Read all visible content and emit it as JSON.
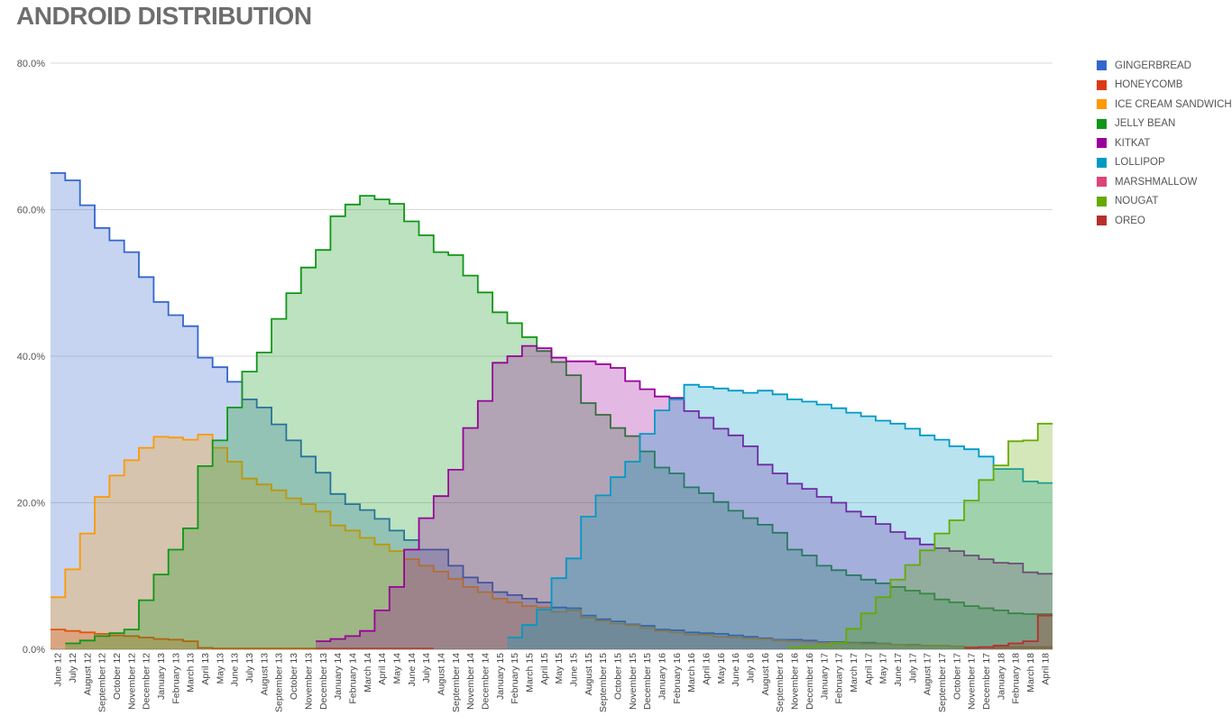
{
  "chart_data": {
    "type": "area",
    "title": "ANDROID DISTRIBUTION",
    "categories": [
      "June 12",
      "July 12",
      "August 12",
      "September 12",
      "October 12",
      "November 12",
      "December 12",
      "January 13",
      "February 13",
      "March 13",
      "April 13",
      "May 13",
      "June 13",
      "July 13",
      "August 13",
      "September 13",
      "October 13",
      "November 13",
      "December 13",
      "January 14",
      "February 14",
      "March 14",
      "April 14",
      "May 14",
      "June 14",
      "July 14",
      "August 14",
      "September 14",
      "November 14",
      "December 14",
      "January 15",
      "February 15",
      "March 15",
      "April 15",
      "May 15",
      "June 15",
      "August 15",
      "September 15",
      "October 15",
      "November 15",
      "December 15",
      "January 16",
      "February 16",
      "March 16",
      "April 16",
      "May 16",
      "June 16",
      "July 16",
      "August 16",
      "September 16",
      "November 16",
      "December 16",
      "January 17",
      "February 17",
      "March 17",
      "April 17",
      "May 17",
      "June 17",
      "July 17",
      "August 17",
      "September 17",
      "October 17",
      "November 17",
      "December 17",
      "January 18",
      "February 18",
      "March 18",
      "April 18"
    ],
    "y_ticks": [
      "0.0%",
      "20.0%",
      "40.0%",
      "60.0%",
      "80.0%"
    ],
    "ylim": [
      0,
      80
    ],
    "grid": true,
    "legend_position": "right",
    "series": [
      {
        "name": "GINGERBREAD",
        "color": "#3366cc",
        "fill": "#c6d3f0",
        "values": [
          65.0,
          64.0,
          60.6,
          57.5,
          55.8,
          54.2,
          50.8,
          47.4,
          45.6,
          44.1,
          39.8,
          38.5,
          36.5,
          34.1,
          33.0,
          30.7,
          28.5,
          26.3,
          24.1,
          21.2,
          19.8,
          19.0,
          17.8,
          16.2,
          14.9,
          13.6,
          13.6,
          11.4,
          9.8,
          9.1,
          7.8,
          7.4,
          6.9,
          6.4,
          5.7,
          5.6,
          4.6,
          4.1,
          3.8,
          3.4,
          3.2,
          2.7,
          2.6,
          2.3,
          2.2,
          2.1,
          1.9,
          1.7,
          1.5,
          1.3,
          1.3,
          1.2,
          1.0,
          1.0,
          0.9,
          0.9,
          0.8,
          0.6,
          0.6,
          0.5,
          0.5,
          0.4,
          0.3,
          0.3,
          0.3,
          0.3,
          0.3,
          0.3
        ]
      },
      {
        "name": "HONEYCOMB",
        "color": "#dc3912",
        "fill": "#f4c3b6",
        "values": [
          2.7,
          2.5,
          2.3,
          2.1,
          1.9,
          1.8,
          1.6,
          1.4,
          1.3,
          1.1,
          0.2,
          0.1,
          0.1,
          0.1,
          0.1,
          0.1,
          0.1,
          0.1,
          0.1,
          0.1,
          0.1,
          0.1,
          0.1,
          0.1,
          0.1,
          0.1,
          0.0,
          0.0,
          0.0,
          0.0,
          0.0,
          0.0,
          0.0,
          0.0,
          0.0,
          0.0,
          0.0,
          0.0,
          0.0,
          0.0,
          0.0,
          0.0,
          0.0,
          0.0,
          0.0,
          0.0,
          0.0,
          0.0,
          0.0,
          0.0,
          0.0,
          0.0,
          0.0,
          0.0,
          0.0,
          0.0,
          0.0,
          0.0,
          0.0,
          0.0,
          0.0,
          0.0,
          0.0,
          0.0,
          0.0,
          0.0,
          0.0,
          0.0
        ]
      },
      {
        "name": "ICE CREAM SANDWICH",
        "color": "#ff9900",
        "fill": "#fbd9b0",
        "values": [
          7.1,
          10.9,
          15.8,
          20.8,
          23.7,
          25.8,
          27.5,
          29.0,
          28.9,
          28.6,
          29.3,
          27.5,
          25.6,
          23.3,
          22.5,
          21.7,
          20.6,
          19.8,
          18.8,
          16.9,
          16.2,
          15.2,
          14.3,
          13.4,
          12.3,
          11.4,
          10.6,
          9.6,
          8.5,
          7.8,
          6.9,
          6.4,
          5.9,
          5.7,
          5.1,
          5.3,
          4.3,
          3.9,
          3.5,
          3.3,
          2.9,
          2.5,
          2.3,
          2.0,
          2.0,
          1.7,
          1.6,
          1.5,
          1.4,
          1.2,
          1.1,
          1.0,
          0.9,
          0.8,
          0.8,
          0.7,
          0.7,
          0.6,
          0.5,
          0.5,
          0.5,
          0.4,
          0.3,
          0.3,
          0.2,
          0.2,
          0.2,
          0.2
        ]
      },
      {
        "name": "JELLY BEAN",
        "color": "#109618",
        "fill": "#b5e2b9",
        "values": [
          0,
          0.8,
          1.2,
          1.8,
          2.2,
          2.7,
          6.7,
          10.2,
          13.6,
          16.5,
          25.0,
          28.5,
          33.0,
          37.9,
          40.5,
          45.1,
          48.6,
          52.1,
          54.5,
          59.1,
          60.7,
          61.9,
          61.4,
          60.8,
          58.4,
          56.5,
          54.2,
          53.8,
          51.0,
          48.7,
          46.0,
          44.5,
          42.6,
          40.7,
          39.2,
          37.4,
          33.6,
          32.0,
          30.2,
          29.1,
          27.0,
          24.8,
          24.0,
          22.1,
          21.3,
          20.1,
          18.9,
          17.9,
          17.0,
          15.9,
          13.6,
          12.8,
          11.4,
          10.8,
          10.1,
          9.5,
          9.0,
          8.5,
          8.0,
          7.6,
          6.8,
          6.4,
          5.9,
          5.6,
          5.3,
          4.9,
          4.8,
          4.8
        ]
      },
      {
        "name": "KITKAT",
        "color": "#990099",
        "fill": "#e3b6e3",
        "values": [
          0,
          0,
          0,
          0,
          0,
          0,
          0,
          0,
          0,
          0,
          0,
          0,
          0,
          0,
          0,
          0,
          0,
          0,
          1.1,
          1.4,
          1.8,
          2.5,
          5.3,
          8.5,
          13.6,
          17.9,
          20.9,
          24.5,
          30.2,
          33.9,
          39.1,
          40.0,
          41.4,
          41.1,
          39.8,
          39.3,
          39.3,
          38.9,
          38.4,
          36.6,
          35.5,
          34.5,
          34.3,
          32.5,
          31.6,
          30.1,
          29.2,
          27.7,
          25.2,
          24.0,
          22.6,
          21.9,
          20.8,
          20.0,
          18.8,
          18.1,
          17.1,
          16.0,
          15.1,
          14.3,
          13.8,
          13.4,
          12.8,
          12.3,
          11.8,
          11.7,
          10.5,
          10.3
        ]
      },
      {
        "name": "LOLLIPOP",
        "color": "#0099c6",
        "fill": "#b0e1f0",
        "values": [
          0,
          0,
          0,
          0,
          0,
          0,
          0,
          0,
          0,
          0,
          0,
          0,
          0,
          0,
          0,
          0,
          0,
          0,
          0,
          0,
          0,
          0,
          0,
          0,
          0,
          0,
          0,
          0,
          0,
          0,
          0,
          1.6,
          3.3,
          5.4,
          9.7,
          12.4,
          18.1,
          21.0,
          23.5,
          25.6,
          29.4,
          32.6,
          34.1,
          36.1,
          35.8,
          35.6,
          35.3,
          35.0,
          35.3,
          34.8,
          34.1,
          33.8,
          33.4,
          32.9,
          32.3,
          31.8,
          31.2,
          30.8,
          30.1,
          29.2,
          28.6,
          27.7,
          27.3,
          26.3,
          24.6,
          24.6,
          22.9,
          22.7
        ]
      },
      {
        "name": "MARSHMALLOW",
        "color": "#dd4477",
        "fill": "#f4c6d6",
        "values": [
          0,
          0,
          0,
          0,
          0,
          0,
          0,
          0,
          0,
          0,
          0,
          0,
          0,
          0,
          0,
          0,
          0,
          0,
          0,
          0,
          0,
          0,
          0,
          0,
          0,
          0,
          0,
          0,
          0,
          0,
          0,
          0,
          0,
          0,
          0,
          0,
          0,
          0,
          0,
          0,
          0,
          0,
          0,
          0,
          0,
          0,
          0,
          0,
          0,
          0,
          0,
          0,
          0,
          0,
          0,
          0,
          0,
          0,
          0,
          0,
          0,
          0,
          0,
          0,
          0,
          0,
          0,
          0
        ]
      },
      {
        "name": "NOUGAT",
        "color": "#66aa00",
        "fill": "#d1e8b0",
        "values": [
          0,
          0,
          0,
          0,
          0,
          0,
          0,
          0,
          0,
          0,
          0,
          0,
          0,
          0,
          0,
          0,
          0,
          0,
          0,
          0,
          0,
          0,
          0,
          0,
          0,
          0,
          0,
          0,
          0,
          0,
          0,
          0,
          0,
          0,
          0,
          0,
          0,
          0,
          0,
          0,
          0,
          0,
          0,
          0,
          0,
          0,
          0,
          0,
          0,
          0,
          0.3,
          0.4,
          0.5,
          0.9,
          2.8,
          4.9,
          7.1,
          9.5,
          11.5,
          13.5,
          15.8,
          17.6,
          20.3,
          23.1,
          25.1,
          28.4,
          28.5,
          30.8
        ]
      },
      {
        "name": "OREO",
        "color": "#b82e2e",
        "fill": "#e8b8b8",
        "values": [
          0,
          0,
          0,
          0,
          0,
          0,
          0,
          0,
          0,
          0,
          0,
          0,
          0,
          0,
          0,
          0,
          0,
          0,
          0,
          0,
          0,
          0,
          0,
          0,
          0,
          0,
          0,
          0,
          0,
          0,
          0,
          0,
          0,
          0,
          0,
          0,
          0,
          0,
          0,
          0,
          0,
          0,
          0,
          0,
          0,
          0,
          0,
          0,
          0,
          0,
          0,
          0,
          0,
          0,
          0,
          0,
          0,
          0,
          0,
          0,
          0,
          0,
          0.2,
          0.3,
          0.5,
          0.8,
          1.1,
          4.6
        ]
      }
    ]
  }
}
